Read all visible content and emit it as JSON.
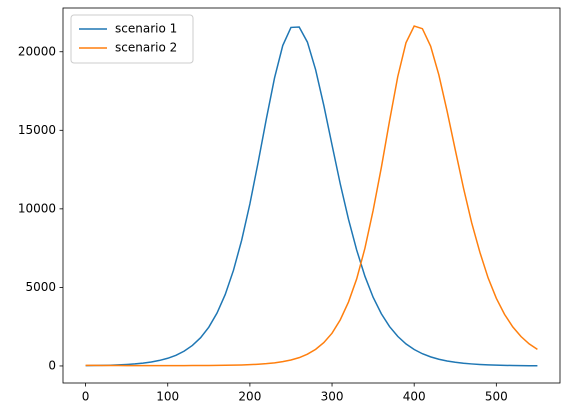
{
  "chart_data": {
    "type": "line",
    "x": [
      0,
      10,
      20,
      30,
      40,
      50,
      60,
      70,
      80,
      90,
      100,
      110,
      120,
      130,
      140,
      150,
      160,
      170,
      180,
      190,
      200,
      210,
      220,
      230,
      240,
      250,
      260,
      270,
      280,
      290,
      300,
      310,
      320,
      330,
      340,
      350,
      360,
      370,
      380,
      390,
      400,
      410,
      420,
      430,
      440,
      450,
      460,
      470,
      480,
      490,
      500,
      510,
      520,
      530,
      540,
      550
    ],
    "series": [
      {
        "name": "scenario 1",
        "color": "#1f77b4",
        "values": [
          18,
          25,
          34,
          48,
          67,
          93,
          130,
          182,
          252,
          352,
          489,
          680,
          944,
          1305,
          1799,
          2470,
          3370,
          4552,
          6087,
          8007,
          10316,
          12950,
          15717,
          18332,
          20394,
          21549,
          21576,
          20615,
          18860,
          16580,
          14063,
          11590,
          9343,
          7378,
          5713,
          4375,
          3324,
          2506,
          1881,
          1405,
          1046,
          778,
          578,
          427,
          317,
          234,
          173,
          128,
          95,
          70,
          52,
          38,
          28,
          21,
          15,
          11
        ]
      },
      {
        "name": "scenario 2",
        "color": "#ff7f0e",
        "values": [
          40,
          36,
          32,
          29,
          26,
          24,
          22,
          21,
          20,
          20,
          21,
          22,
          24,
          27,
          28,
          30,
          35,
          41,
          50,
          63,
          82,
          108,
          145,
          199,
          276,
          381,
          530,
          748,
          1055,
          1485,
          2085,
          2934,
          4067,
          5540,
          7487,
          9895,
          12629,
          15602,
          18417,
          20572,
          21637,
          21466,
          20355,
          18532,
          16232,
          13758,
          11327,
          9114,
          7233,
          5603,
          4305,
          3285,
          2485,
          1873,
          1404,
          1052
        ]
      }
    ],
    "xlim": [
      -27.5,
      577.5
    ],
    "xticks": [
      0,
      100,
      200,
      300,
      400,
      500
    ],
    "ylim": [
      -1085,
      22785
    ],
    "yticks": [
      0,
      5000,
      10000,
      15000,
      20000
    ],
    "grid": false,
    "legend": "upper left"
  }
}
